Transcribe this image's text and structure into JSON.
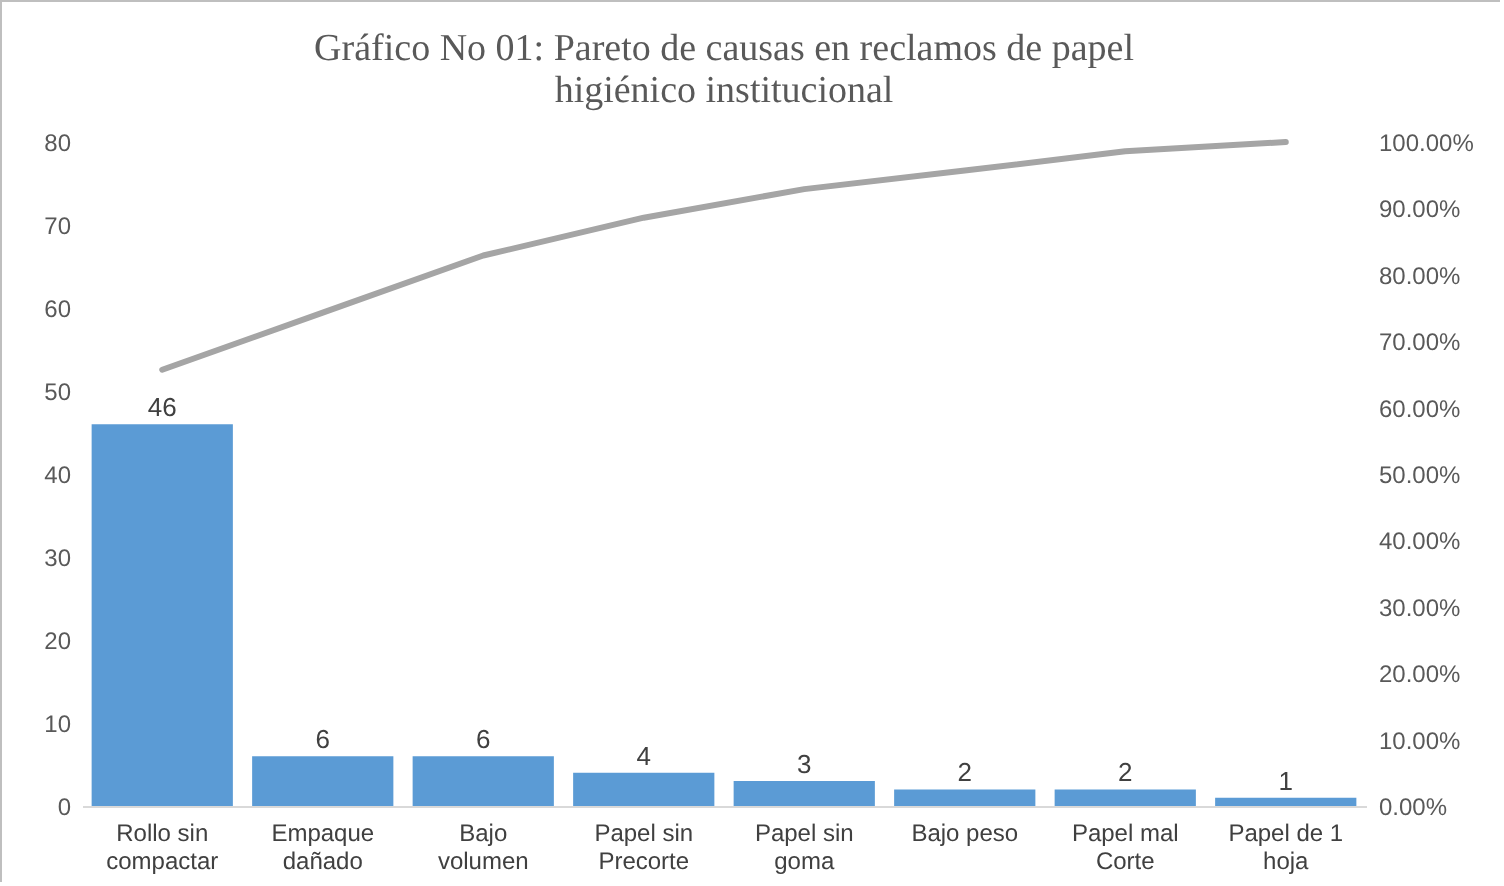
{
  "chart_data": {
    "type": "bar",
    "title": "Gráfico No 01: Pareto de causas en reclamos de papel higiénico institucional",
    "categories": [
      "Rollo sin compactar",
      "Empaque dañado",
      "Bajo volumen",
      "Papel sin Precorte",
      "Papel sin goma",
      "Bajo peso",
      "Papel mal Corte",
      "Papel de 1 hoja"
    ],
    "series": [
      {
        "color": "#5b9bd5",
        "values": [
          46,
          6,
          6,
          4,
          3,
          2,
          2,
          1
        ],
        "value_labels": [
          "46",
          "6",
          "6",
          "4",
          "3",
          "2",
          "2",
          "1"
        ]
      },
      {
        "type": "line",
        "axis": "y2",
        "color": "#a5a5a5",
        "values": [
          65.7,
          74.3,
          82.9,
          88.6,
          92.9,
          95.7,
          98.6,
          100
        ]
      }
    ],
    "ylim": [
      0,
      80
    ],
    "yticks": [
      0,
      10,
      20,
      30,
      40,
      50,
      60,
      70,
      80
    ],
    "y2lim": [
      0,
      100
    ],
    "y2ticks": [
      {
        "value": 0,
        "label": "0.00%"
      },
      {
        "value": 10,
        "label": "10.00%"
      },
      {
        "value": 20,
        "label": "20.00%"
      },
      {
        "value": 30,
        "label": "30.00%"
      },
      {
        "value": 40,
        "label": "40.00%"
      },
      {
        "value": 50,
        "label": "50.00%"
      },
      {
        "value": 60,
        "label": "60.00%"
      },
      {
        "value": 70,
        "label": "70.00%"
      },
      {
        "value": 80,
        "label": "80.00%"
      },
      {
        "value": 90,
        "label": "90.00%"
      },
      {
        "value": 100,
        "label": "100.00%"
      }
    ],
    "grid": false,
    "marker": "none",
    "line_style": "solid"
  }
}
